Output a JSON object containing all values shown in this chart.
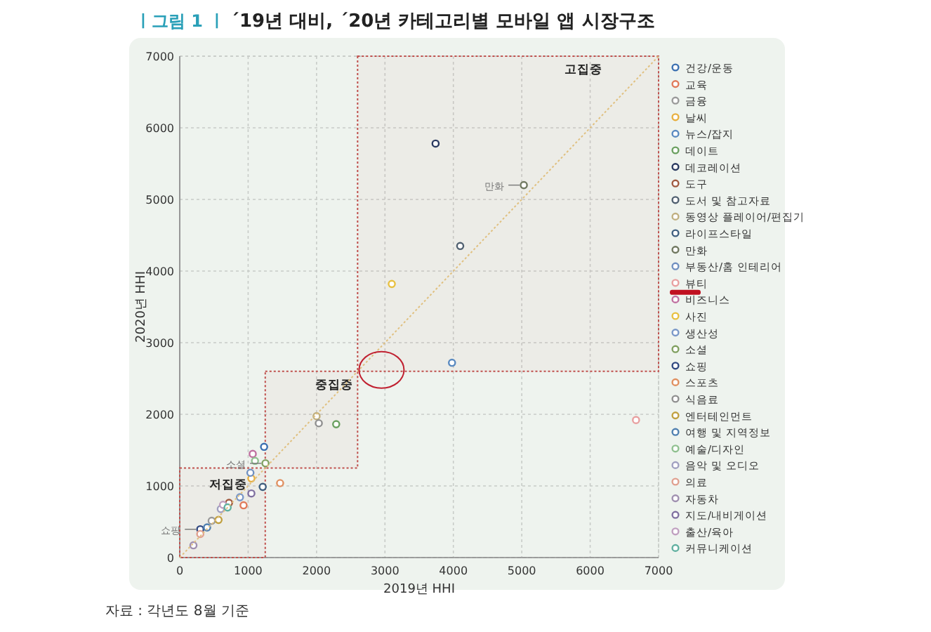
{
  "chart_data": {
    "type": "scatter",
    "title": "´19년 대비, ´20년 카테고리별 모바일 앱 시장구조",
    "xlabel": "2019년 HHI",
    "ylabel": "2020년 HHI",
    "annotations": [
      "ㅣ그림 1 ㅣ",
      "자료 : 각년도 8월 기준",
      {
        "text": "만화",
        "x": 5030,
        "y": 5200
      },
      {
        "text": "소셜",
        "x": 1253,
        "y": 1316
      },
      {
        "text": "쇼핑",
        "x": 300,
        "y": 395
      }
    ],
    "xlim": [
      0,
      7000
    ],
    "ylim": [
      0,
      7000
    ],
    "xticks": [
      0,
      1000,
      2000,
      3000,
      4000,
      5000,
      6000,
      7000
    ],
    "yticks": [
      0,
      1000,
      2000,
      3000,
      4000,
      5000,
      6000,
      7000
    ],
    "grid": true,
    "legend": "right",
    "marker": "circle",
    "bands": [
      {
        "axis": "x",
        "from": 0,
        "to": 1250,
        "label": "저집중",
        "color": "#c0504d"
      },
      {
        "axis": "x",
        "from": 1250,
        "to": 2600,
        "label": "중집중",
        "color": "#c0504d"
      },
      {
        "axis": "x",
        "from": 2600,
        "to": 7000,
        "label": "고집중",
        "color": "#c0504d"
      }
    ],
    "series": [
      {
        "name": "건강/운동",
        "color": "#3a6fb0",
        "x": [
          1233
        ],
        "values": [
          1546
        ]
      },
      {
        "name": "교육",
        "color": "#e07a5a",
        "x": [
          933
        ],
        "values": [
          730
        ]
      },
      {
        "name": "금융",
        "color": "#9a9a9a",
        "x": [
          467
        ],
        "values": [
          513
        ]
      },
      {
        "name": "날씨",
        "color": "#e8b040",
        "x": [
          1047
        ],
        "values": [
          1105
        ]
      },
      {
        "name": "뉴스/잡지",
        "color": "#5a8ac0",
        "x": [
          3980
        ],
        "values": [
          2720
        ]
      },
      {
        "name": "데이트",
        "color": "#6aa060",
        "x": [
          2287
        ],
        "values": [
          1862
        ]
      },
      {
        "name": "데코레이션",
        "color": "#2a3a60",
        "x": [
          3740
        ],
        "values": [
          5780
        ]
      },
      {
        "name": "도구",
        "color": "#a05a40",
        "x": [
          720
        ],
        "values": [
          763
        ]
      },
      {
        "name": "도서 및 참고자료",
        "color": "#506070",
        "x": [
          4100
        ],
        "values": [
          4350
        ]
      },
      {
        "name": "동영상 플레이어/편집기",
        "color": "#c0b080",
        "x": [
          2000
        ],
        "values": [
          1974
        ]
      },
      {
        "name": "라이프스타일",
        "color": "#406080",
        "x": [
          1213
        ],
        "values": [
          987
        ]
      },
      {
        "name": "만화",
        "color": "#707860",
        "x": [
          5030
        ],
        "values": [
          5200
        ]
      },
      {
        "name": "부동산/홈 인테리어",
        "color": "#7090c0",
        "x": [
          1033
        ],
        "values": [
          1184
        ]
      },
      {
        "name": "뷰티",
        "color": "#e8a0a0",
        "x": [
          6670
        ],
        "values": [
          1920
        ]
      },
      {
        "name": "비즈니스",
        "color": "#c070a0",
        "x": [
          1067
        ],
        "values": [
          1447
        ]
      },
      {
        "name": "사진",
        "color": "#e8c040",
        "x": [
          3100
        ],
        "values": [
          3820
        ]
      },
      {
        "name": "생산성",
        "color": "#7a98c8",
        "x": [
          880
        ],
        "values": [
          842
        ]
      },
      {
        "name": "소셜",
        "color": "#80a060",
        "x": [
          1253
        ],
        "values": [
          1316
        ]
      },
      {
        "name": "쇼핑",
        "color": "#304880",
        "x": [
          300
        ],
        "values": [
          395
        ]
      },
      {
        "name": "스포츠",
        "color": "#e09060",
        "x": [
          1467
        ],
        "values": [
          1039
        ]
      },
      {
        "name": "식음료",
        "color": "#909090",
        "x": [
          2033
        ],
        "values": [
          1875
        ]
      },
      {
        "name": "엔터테인먼트",
        "color": "#c0a040",
        "x": [
          567
        ],
        "values": [
          526
        ]
      },
      {
        "name": "여행 및 지역정보",
        "color": "#5080b0",
        "x": [
          400
        ],
        "values": [
          420
        ]
      },
      {
        "name": "예술/디자인",
        "color": "#90c090",
        "x": [
          1100
        ],
        "values": [
          1350
        ]
      },
      {
        "name": "음악 및 오디오",
        "color": "#a0a0c0",
        "x": [
          600
        ],
        "values": [
          678
        ]
      },
      {
        "name": "의료",
        "color": "#e0a090",
        "x": [
          300
        ],
        "values": [
          329
        ]
      },
      {
        "name": "자동차",
        "color": "#a090b0",
        "x": [
          200
        ],
        "values": [
          171
        ]
      },
      {
        "name": "지도/내비게이션",
        "color": "#8070a0",
        "x": [
          1047
        ],
        "values": [
          895
        ]
      },
      {
        "name": "출산/육아",
        "color": "#c0a0c0",
        "x": [
          633
        ],
        "values": [
          737
        ]
      },
      {
        "name": "커뮤니케이션",
        "color": "#60b0a0",
        "x": [
          700
        ],
        "values": [
          700
        ]
      },
      {
        "type": "line",
        "color": "#e0c080",
        "line_style": "dotted",
        "marker": "none",
        "x": [
          0,
          7000
        ],
        "values": [
          0,
          7000
        ]
      }
    ]
  }
}
